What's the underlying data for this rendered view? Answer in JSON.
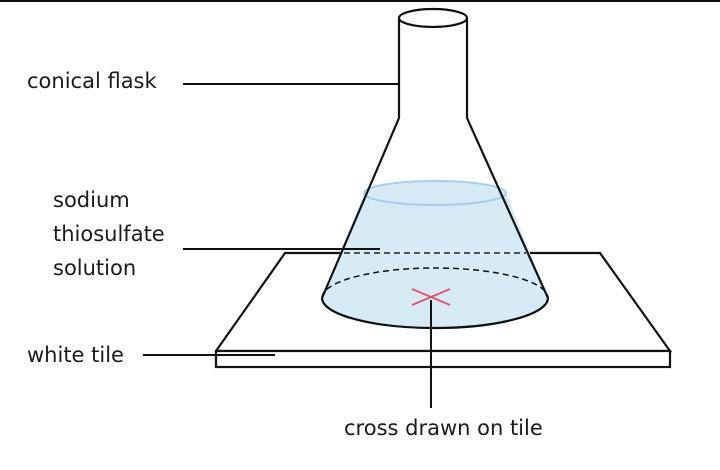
{
  "labels": {
    "flask": "conical flask",
    "solution_line1": "sodium",
    "solution_line2": "thiosulfate",
    "solution_line3": "solution",
    "tile": "white tile",
    "cross": "cross drawn on tile"
  },
  "colors": {
    "line": "#111111",
    "liquid_fill": "#d7ebf7",
    "liquid_surface": "#a9cdef",
    "cross": "#e0556b",
    "background": "#ffffff"
  }
}
